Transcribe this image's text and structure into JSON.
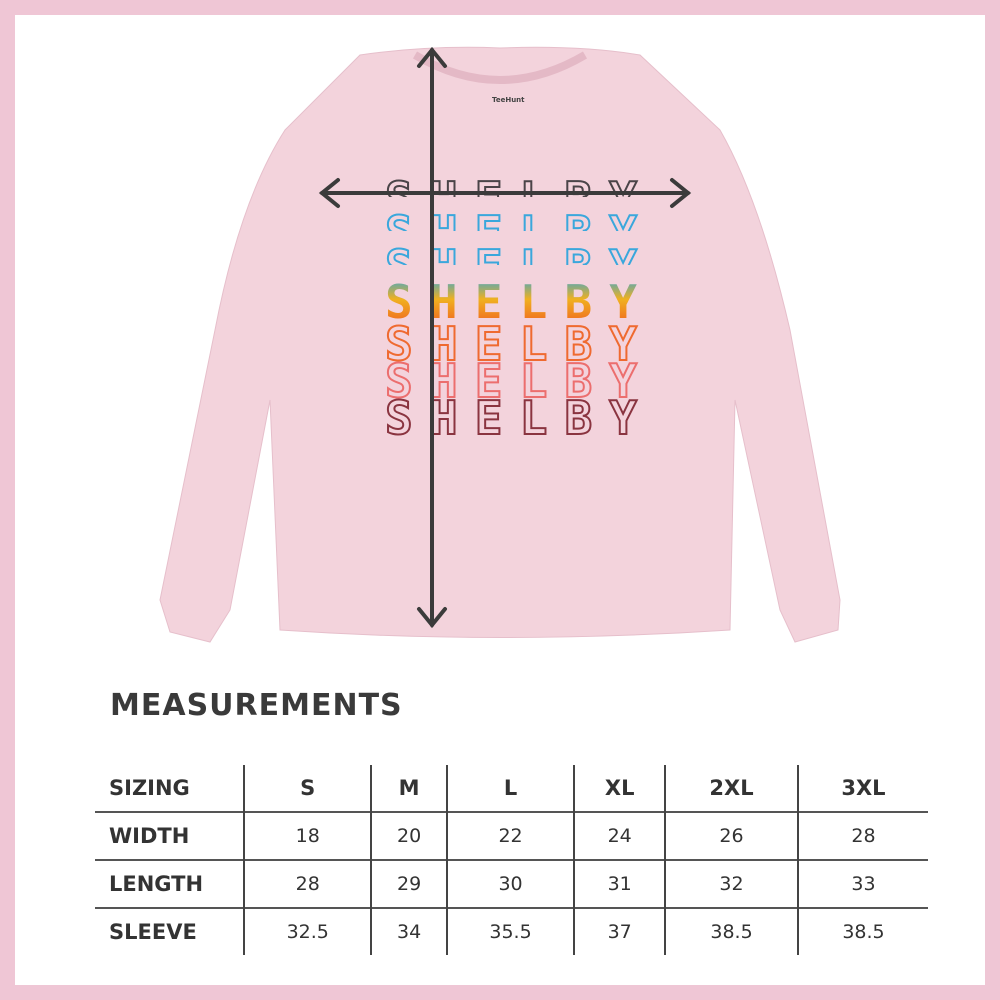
{
  "design": {
    "text": "SHELBY",
    "brand_label": "TeeHunt",
    "shirt_color": "#f3d3dc",
    "border_color": "#efc6d5",
    "line_colors": [
      "#4a4448",
      "#3aa7dc",
      "#3aa7dc",
      "gradient",
      "#ef6a30",
      "#ec6e6e",
      "#8a3440"
    ]
  },
  "measurements": {
    "title": "MEASUREMENTS",
    "header": [
      "SIZING",
      "S",
      "M",
      "L",
      "XL",
      "2XL",
      "3XL"
    ],
    "rows": [
      [
        "WIDTH",
        "18",
        "20",
        "22",
        "24",
        "26",
        "28"
      ],
      [
        "LENGTH",
        "28",
        "29",
        "30",
        "31",
        "32",
        "33"
      ],
      [
        "SLEEVE",
        "32.5",
        "34",
        "35.5",
        "37",
        "38.5",
        "38.5"
      ]
    ]
  }
}
